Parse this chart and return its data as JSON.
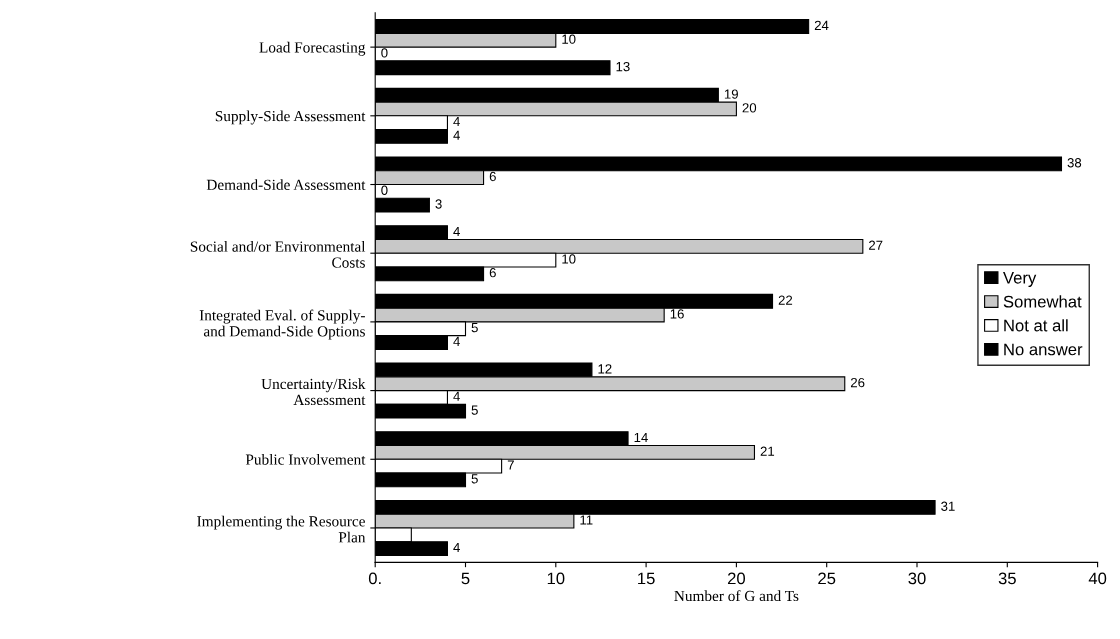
{
  "chart_data": {
    "type": "bar",
    "orientation": "horizontal",
    "xlabel": "Number of G and Ts",
    "categories": [
      "Load Forecasting",
      "Supply-Side Assessment",
      "Demand-Side Assessment",
      "Social and/or Environmental\nCosts",
      "Integrated Eval. of Supply-\nand Demand-Side Options",
      "Uncertainty/Risk\nAssessment",
      "Public Involvement",
      "Implementing the Resource\nPlan"
    ],
    "series": [
      {
        "name": "Very",
        "color": "#000000",
        "values": [
          24,
          19,
          38,
          4,
          22,
          12,
          14,
          31
        ]
      },
      {
        "name": "Somewhat",
        "color": "#c8c8c8",
        "values": [
          10,
          20,
          6,
          27,
          16,
          26,
          21,
          11
        ]
      },
      {
        "name": "Not at all",
        "color": "#ffffff",
        "values": [
          0,
          4,
          0,
          10,
          5,
          4,
          7,
          2
        ],
        "value_labels": [
          "0",
          "4",
          "0",
          "10",
          "5",
          "4",
          "7",
          null
        ]
      },
      {
        "name": "No answer",
        "color": "#000000",
        "values": [
          13,
          4,
          3,
          6,
          4,
          5,
          5,
          4
        ]
      }
    ],
    "xlim": [
      0,
      40
    ],
    "xticks": [
      {
        "value": 0,
        "label": "0."
      },
      5,
      10,
      15,
      20,
      25,
      30,
      35,
      40
    ],
    "data_labels": true,
    "legend": "right",
    "grid": false
  }
}
